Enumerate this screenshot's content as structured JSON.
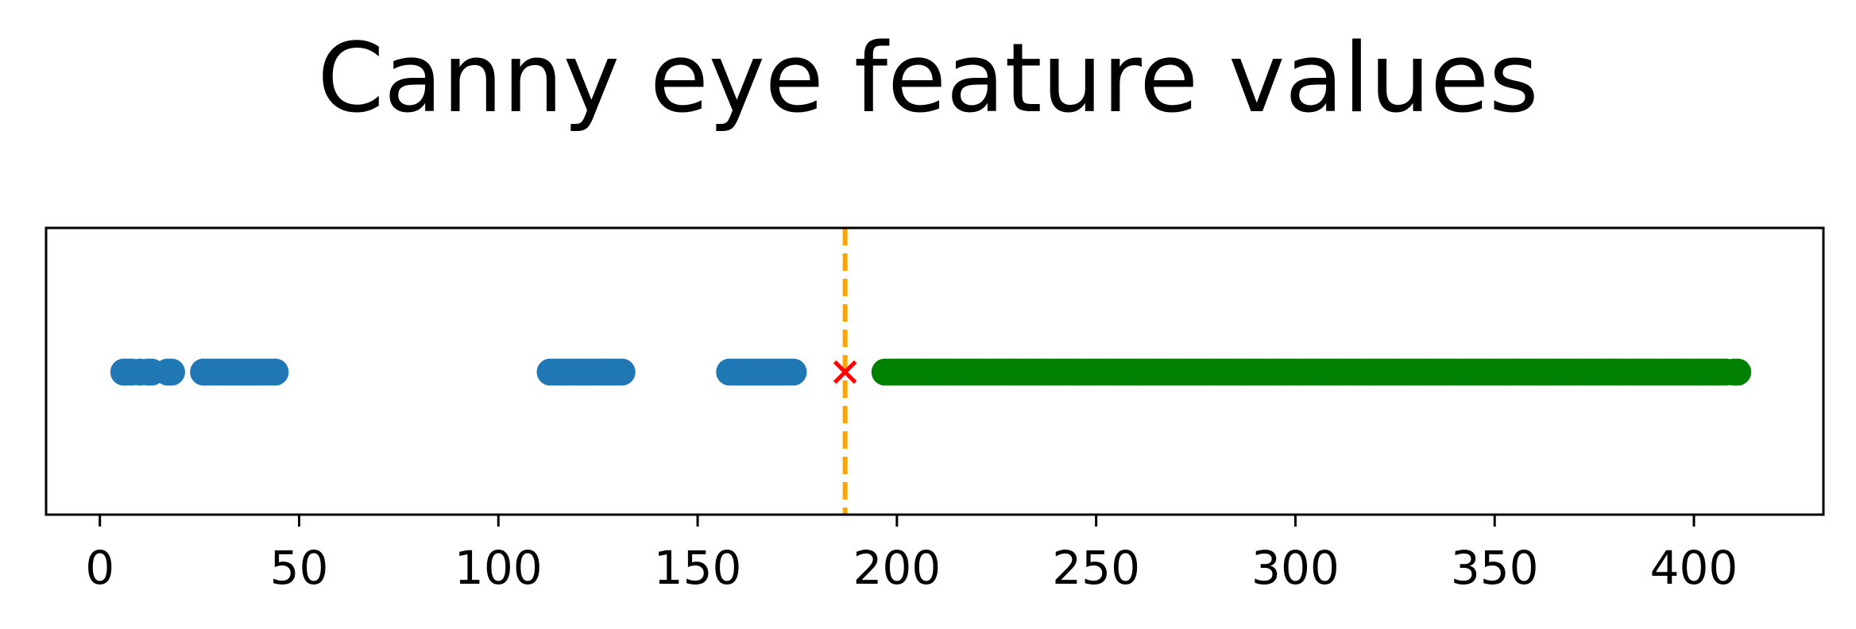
{
  "chart_data": {
    "type": "scatter",
    "title": "Canny eye feature values",
    "xlabel": "",
    "ylabel": "",
    "xlim": [
      -13.5,
      432.5
    ],
    "xticks": [
      0,
      50,
      100,
      150,
      200,
      250,
      300,
      350,
      400
    ],
    "y_ticks_visible": false,
    "grid": false,
    "legend": null,
    "threshold": {
      "x": 187,
      "color": "#ffa500",
      "style": "dashed"
    },
    "marker": {
      "x": 187,
      "shape": "x",
      "color": "#ff0000"
    },
    "series": [
      {
        "color": "#1f77b4",
        "x": [
          6,
          7,
          8,
          10,
          12,
          13,
          17,
          18,
          26,
          27,
          28,
          29,
          30,
          31,
          32,
          33,
          34,
          35,
          36,
          37,
          38,
          39,
          40,
          41,
          42,
          43,
          44,
          113,
          114,
          115,
          116,
          117,
          118,
          119,
          120,
          121,
          122,
          123,
          124,
          125,
          126,
          127,
          128,
          129,
          130,
          131,
          158,
          159,
          160,
          161,
          162,
          163,
          164,
          165,
          166,
          167,
          168,
          169,
          170,
          171,
          172,
          173,
          174
        ]
      },
      {
        "color": "#008000",
        "range": [
          197,
          408
        ],
        "extra_x": [
          410,
          411
        ]
      }
    ]
  }
}
